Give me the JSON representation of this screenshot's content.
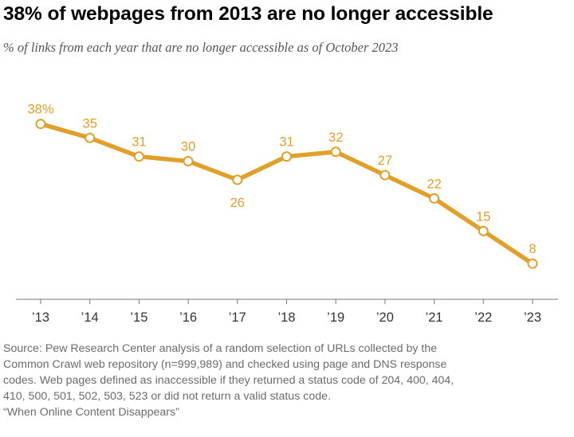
{
  "title": "38% of webpages from 2013 are no longer accessible",
  "subtitle": "% of links from each year that are no longer accessible as of October 2023",
  "source": {
    "lines": [
      "Source: Pew Research Center analysis of a random selection of URLs collected by the",
      "Common Crawl web repository (n=999,989) and checked using page and DNS response",
      "codes. Web pages defined as inaccessible if they returned a status code of 204, 400, 404,",
      "410, 500, 501, 502, 503, 523 or did not return a valid status code.",
      "“When Online Content Disappears”"
    ]
  },
  "chart_data": {
    "type": "line",
    "title": "38% of webpages from 2013 are no longer accessible",
    "xlabel": "",
    "ylabel": "",
    "categories": [
      "’13",
      "’14",
      "’15",
      "’16",
      "’17",
      "’18",
      "’19",
      "’20",
      "’21",
      "’22",
      "’23"
    ],
    "series": [
      {
        "name": "% no longer accessible",
        "values": [
          38,
          35,
          31,
          30,
          26,
          31,
          32,
          27,
          22,
          15,
          8
        ],
        "labels": [
          "38%",
          "35",
          "31",
          "30",
          "26",
          "31",
          "32",
          "27",
          "22",
          "15",
          "8"
        ],
        "label_position": [
          "above",
          "above",
          "above",
          "above",
          "below",
          "above",
          "above",
          "above",
          "above",
          "above",
          "above"
        ]
      }
    ],
    "ylim": [
      0,
      40
    ],
    "grid": false,
    "color": "#e0a02a"
  }
}
